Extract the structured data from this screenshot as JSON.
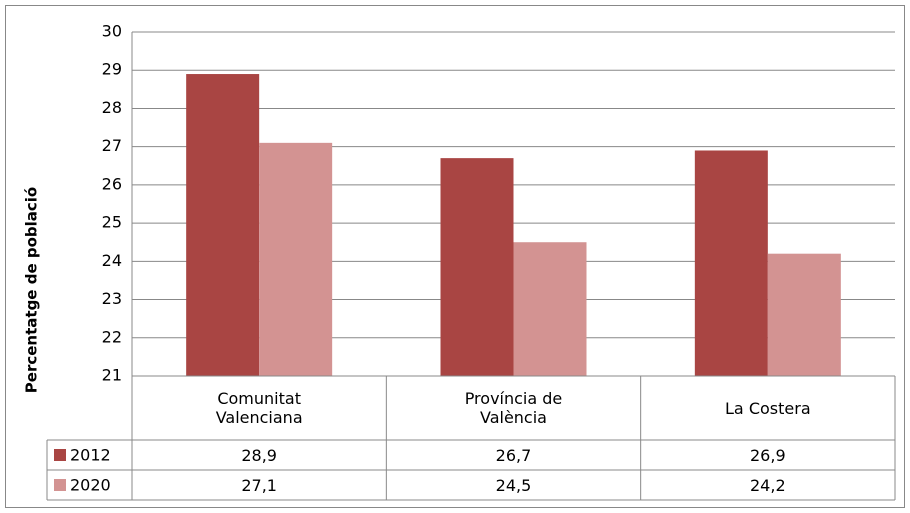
{
  "chart_data": {
    "type": "bar",
    "y_label": "Percentatge de població",
    "categories": [
      "Comunitat Valenciana",
      "Província de València",
      "La Costera"
    ],
    "series": [
      {
        "name": "2012",
        "color": "#a94543",
        "values": [
          28.9,
          26.7,
          26.9
        ],
        "value_labels": [
          "28,9",
          "26,7",
          "26,9"
        ]
      },
      {
        "name": "2020",
        "color": "#d39392",
        "values": [
          27.1,
          24.5,
          24.2
        ],
        "value_labels": [
          "27,1",
          "24,5",
          "24,2"
        ]
      }
    ],
    "ylim": [
      21,
      30
    ],
    "yticks": [
      21,
      22,
      23,
      24,
      25,
      26,
      27,
      28,
      29,
      30
    ],
    "grid": true
  }
}
